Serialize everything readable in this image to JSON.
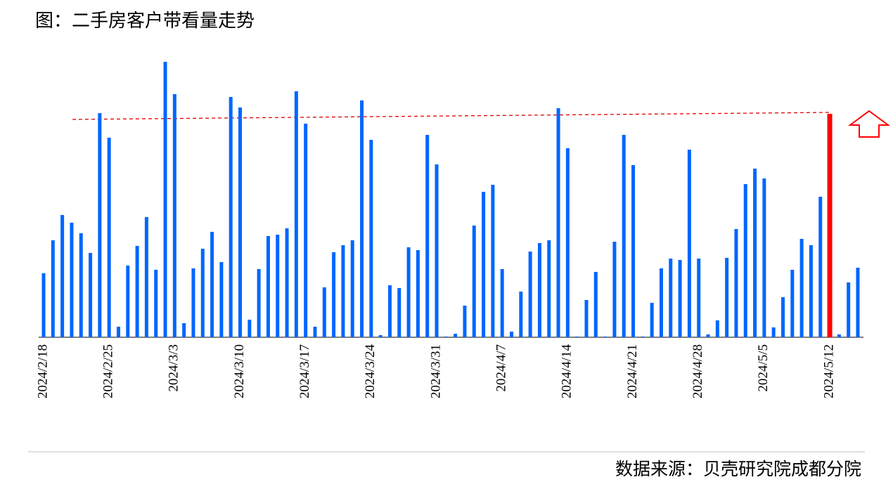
{
  "chart_data": {
    "type": "bar",
    "title": "图：二手房客户带看量走势",
    "source": "数据来源：贝壳研究院成都分院",
    "categories": [
      "2024/2/18",
      null,
      null,
      null,
      null,
      null,
      null,
      "2024/2/25",
      null,
      null,
      null,
      null,
      null,
      null,
      "2024/3/3",
      null,
      null,
      null,
      null,
      null,
      null,
      "2024/3/10",
      null,
      null,
      null,
      null,
      null,
      null,
      "2024/3/17",
      null,
      null,
      null,
      null,
      null,
      null,
      "2024/3/24",
      null,
      null,
      null,
      null,
      null,
      null,
      "2024/3/31",
      null,
      null,
      null,
      null,
      null,
      null,
      "2024/4/7",
      null,
      null,
      null,
      null,
      null,
      null,
      "2024/4/14",
      null,
      null,
      null,
      null,
      null,
      null,
      "2024/4/21",
      null,
      null,
      null,
      null,
      null,
      null,
      "2024/4/28",
      null,
      null,
      null,
      null,
      null,
      null,
      "2024/5/5",
      null,
      null,
      null,
      null,
      null,
      null,
      "2024/5/12",
      null,
      null,
      null
    ],
    "values": [
      91,
      138,
      174,
      163,
      148,
      120,
      319,
      284,
      15,
      102,
      130,
      171,
      96,
      392,
      346,
      20,
      98,
      126,
      150,
      107,
      342,
      327,
      25,
      97,
      144,
      146,
      155,
      350,
      304,
      15,
      71,
      121,
      131,
      138,
      337,
      281,
      3,
      74,
      70,
      128,
      124,
      288,
      246,
      1,
      5,
      45,
      159,
      207,
      217,
      97,
      8,
      65,
      122,
      134,
      138,
      326,
      269,
      1,
      53,
      93,
      1,
      136,
      288,
      245,
      1,
      49,
      98,
      112,
      110,
      267,
      112,
      4,
      24,
      113,
      154,
      218,
      240,
      226,
      14,
      57,
      96,
      140,
      131,
      200,
      318,
      4,
      78,
      99
    ],
    "color": "#0066ff",
    "highlight_index": 84,
    "highlight_color": "#ff0000",
    "ylim": [
      0,
      400
    ]
  }
}
